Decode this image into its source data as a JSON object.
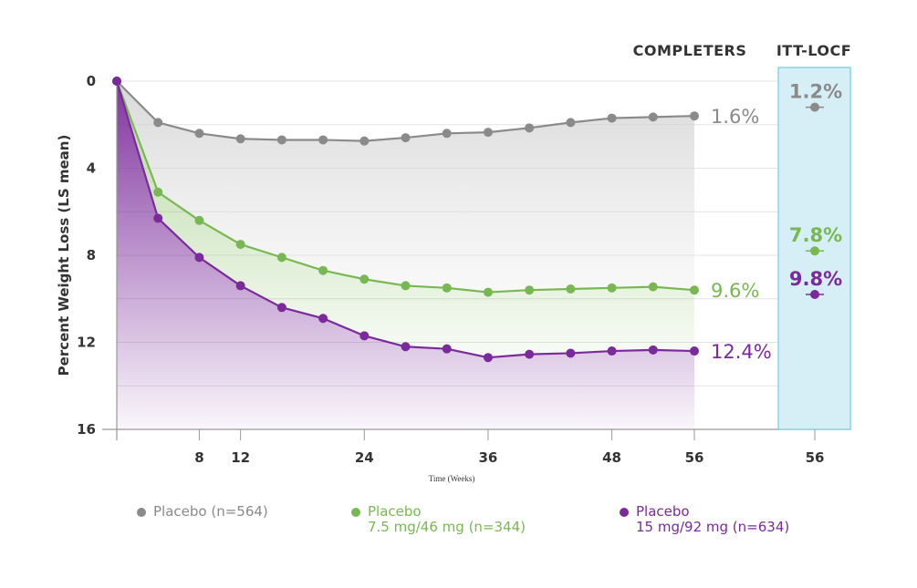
{
  "chart_data": {
    "type": "line",
    "y_axis": {
      "label": "Percent Weight Loss (LS mean)",
      "ylim": [
        0,
        16
      ],
      "ticks": [
        0,
        4,
        8,
        12,
        16
      ],
      "inverted": true
    },
    "x_axis": {
      "label": "Time (Weeks)",
      "ticks": [
        8,
        12,
        24,
        36,
        48,
        56
      ]
    },
    "headers": {
      "completers": "COMPLETERS",
      "itt": "ITT-LOCF",
      "itt_x": "56"
    },
    "series": [
      {
        "name": "Placebo (n=564)",
        "color": "#8a8a8a",
        "x": [
          0,
          4,
          8,
          12,
          16,
          20,
          24,
          28,
          32,
          36,
          40,
          44,
          48,
          52,
          56
        ],
        "y": [
          0,
          1.9,
          2.4,
          2.65,
          2.7,
          2.7,
          2.75,
          2.6,
          2.4,
          2.35,
          2.15,
          1.9,
          1.7,
          1.65,
          1.6
        ],
        "end_label": "1.6%",
        "itt_value": 1.2,
        "itt_label": "1.2%"
      },
      {
        "name": "Placebo\n7.5 mg/46 mg (n=344)",
        "color": "#78b852",
        "x": [
          0,
          4,
          8,
          12,
          16,
          20,
          24,
          28,
          32,
          36,
          40,
          44,
          48,
          52,
          56
        ],
        "y": [
          0,
          5.1,
          6.4,
          7.5,
          8.1,
          8.7,
          9.1,
          9.4,
          9.5,
          9.7,
          9.6,
          9.55,
          9.5,
          9.45,
          9.6
        ],
        "end_label": "9.6%",
        "itt_value": 7.8,
        "itt_label": "7.8%"
      },
      {
        "name": "Placebo\n15 mg/92 mg (n=634)",
        "color": "#7a2a9a",
        "x": [
          0,
          4,
          8,
          12,
          16,
          20,
          24,
          28,
          32,
          36,
          40,
          44,
          48,
          52,
          56
        ],
        "y": [
          0,
          6.3,
          8.1,
          9.4,
          10.4,
          10.9,
          11.7,
          12.2,
          12.3,
          12.7,
          12.55,
          12.5,
          12.4,
          12.35,
          12.4
        ],
        "end_label": "12.4%",
        "itt_value": 9.8,
        "itt_label": "9.8%"
      }
    ]
  },
  "legend": [
    {
      "line1": "Placebo (n=564)",
      "line2": "",
      "color": "#8a8a8a"
    },
    {
      "line1": "Placebo",
      "line2": "7.5 mg/46 mg (n=344)",
      "color": "#78b852"
    },
    {
      "line1": "Placebo",
      "line2": "15 mg/92 mg (n=634)",
      "color": "#7a2a9a"
    }
  ]
}
